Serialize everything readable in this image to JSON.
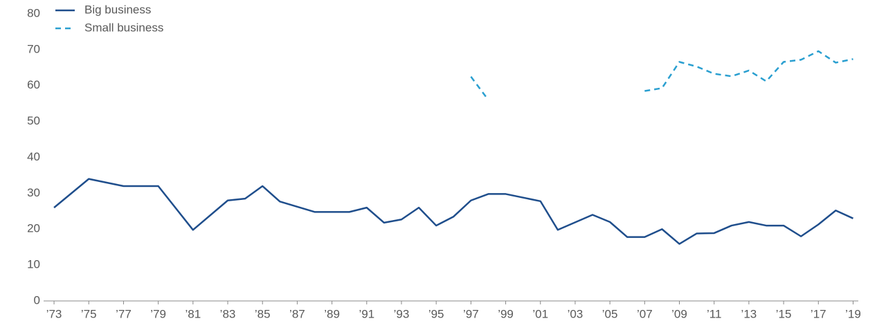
{
  "chart_data": {
    "type": "line",
    "legend": "upper left",
    "xlim": [
      1972.4,
      2019.3
    ],
    "xticks": [
      {
        "value": 1973,
        "label": "’73"
      },
      {
        "value": 1975,
        "label": "’75"
      },
      {
        "value": 1977,
        "label": "’77"
      },
      {
        "value": 1979,
        "label": "’79"
      },
      {
        "value": 1981,
        "label": "’81"
      },
      {
        "value": 1983,
        "label": "’83"
      },
      {
        "value": 1985,
        "label": "’85"
      },
      {
        "value": 1987,
        "label": "’87"
      },
      {
        "value": 1989,
        "label": "’89"
      },
      {
        "value": 1991,
        "label": "’91"
      },
      {
        "value": 1993,
        "label": "’93"
      },
      {
        "value": 1995,
        "label": "’95"
      },
      {
        "value": 1997,
        "label": "’97"
      },
      {
        "value": 1999,
        "label": "’99"
      },
      {
        "value": 2001,
        "label": "’01"
      },
      {
        "value": 2003,
        "label": "’03"
      },
      {
        "value": 2005,
        "label": "’05"
      },
      {
        "value": 2007,
        "label": "’07"
      },
      {
        "value": 2009,
        "label": "’09"
      },
      {
        "value": 2011,
        "label": "’11"
      },
      {
        "value": 2013,
        "label": "’13"
      },
      {
        "value": 2015,
        "label": "’15"
      },
      {
        "value": 2017,
        "label": "’17"
      },
      {
        "value": 2019,
        "label": "’19"
      }
    ],
    "ylim": [
      0,
      80
    ],
    "yticks": [
      0,
      10,
      20,
      30,
      40,
      50,
      60,
      70,
      80
    ],
    "series": [
      {
        "name": "Big business",
        "color": "#1f4e8c",
        "dash": false,
        "x": [
          1973,
          1975,
          1977,
          1979,
          1981,
          1983,
          1984,
          1985,
          1986,
          1988,
          1990,
          1991,
          1992,
          1993,
          1994,
          1995,
          1996,
          1997,
          1998,
          1999,
          2001,
          2002,
          2004,
          2005,
          2006,
          2007,
          2008,
          2009,
          2010,
          2011,
          2012,
          2013,
          2014,
          2015,
          2016,
          2017,
          2018,
          2019
        ],
        "values": [
          26,
          34,
          32,
          32,
          19.8,
          28,
          28.5,
          32,
          27.7,
          24.8,
          24.8,
          26,
          21.8,
          22.7,
          26,
          21,
          23.5,
          28,
          29.8,
          29.8,
          27.8,
          19.8,
          24,
          22,
          17.8,
          17.8,
          20,
          15.9,
          18.8,
          18.9,
          21,
          22,
          21,
          21,
          18,
          21.3,
          25.2,
          23
        ]
      },
      {
        "name": "Small business",
        "color": "#2a9fd0",
        "dash": true,
        "x": [
          1997,
          1998,
          1999,
          2007,
          2008,
          2009,
          2010,
          2011,
          2012,
          2013,
          2014,
          2015,
          2016,
          2017,
          2018,
          2019
        ],
        "values": [
          62.5,
          56,
          null,
          58.5,
          59.3,
          66.6,
          65.3,
          63.3,
          62.6,
          64.2,
          61.2,
          66.6,
          67.2,
          69.6,
          66.4,
          67.4
        ]
      }
    ]
  }
}
